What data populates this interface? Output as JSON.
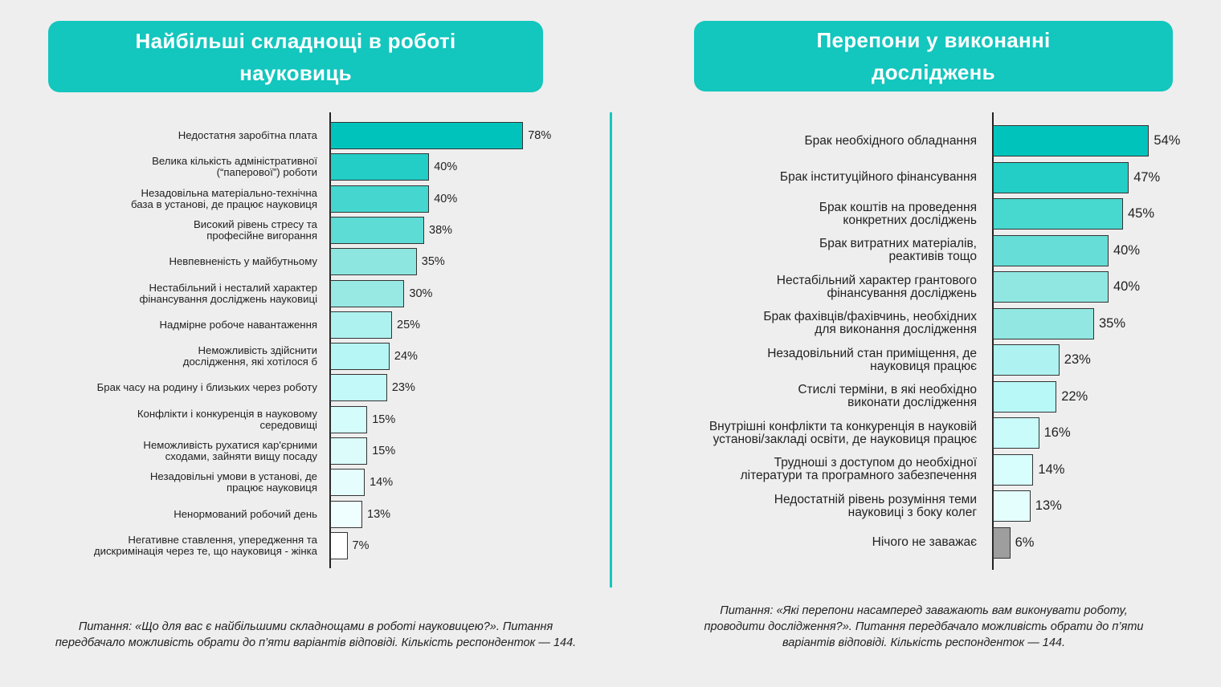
{
  "chart_data": [
    {
      "type": "bar",
      "orientation": "horizontal",
      "title": "Найбільші складнощі в роботі\nнауковиць",
      "categories": [
        "Недостатня заробітна плата",
        "Велика кількість адміністративної\n(“паперової”) роботи",
        "Незадовільна матеріально-технічна\nбаза в установі, де працює науковиця",
        "Високий рівень стресу та\nпрофесійне вигорання",
        "Невпевненість у майбутньому",
        "Нестабільний і несталий характер\nфінансування досліджень науковиці",
        "Надмірне робоче навантаження",
        "Неможливість здійснити\nдослідження, які хотілося б",
        "Брак часу на родину і близьких через роботу",
        "Конфлікти і конкуренція в науковому\nсередовищі",
        "Неможливість рухатися кар'єрними\nсходами, зайняти вищу посаду",
        "Незадовільні умови в установі, де\nпрацює науковиця",
        "Ненормований робочий день",
        "Негативне ставлення, упередження та\nдискримінація через те, що науковиця - жінка"
      ],
      "values": [
        78,
        40,
        40,
        38,
        35,
        30,
        25,
        24,
        23,
        15,
        15,
        14,
        13,
        7
      ],
      "value_labels": [
        "78%",
        "40%",
        "40%",
        "38%",
        "35%",
        "30%",
        "25%",
        "24%",
        "23%",
        "15%",
        "15%",
        "14%",
        "13%",
        "7%"
      ],
      "colors": [
        "#00c4bc",
        "#22cec6",
        "#45d7cf",
        "#5cdcd5",
        "#8ee6e1",
        "#98e8e3",
        "#aef2ef",
        "#b6f6f5",
        "#c3f9f8",
        "#d4fcfb",
        "#dbfcfb",
        "#e6fdfd",
        "#effefe",
        "#ffffff"
      ],
      "xlim": [
        0,
        100
      ],
      "note": "Питання: «Що для вас є найбільшими складнощами в роботі науковицею?». Питання\nпередбачало можливість обрати до п’яти варіантів відповіді. Кількість респонденток — 144."
    },
    {
      "type": "bar",
      "orientation": "horizontal",
      "title": "Перепони у виконанні\nдосліджень",
      "categories": [
        "Брак необхідного обладнання",
        "Брак інституційного фінансування",
        "Брак коштів на проведення\nконкретних досліджень",
        "Брак витратних матеріалів,\nреактивів тощо",
        "Нестабільний характер грантового\nфінансування досліджень",
        "Брак фахівців/фахівчинь, необхідних\nдля виконання дослідження",
        "Незадовільний стан приміщення, де\nнауковиця працює",
        "Стислі терміни, в які необхідно\nвиконати дослідження",
        "Внутрішні конфлікти та конкуренція в науковій\nустанові/закладі освіти, де науковиця працює",
        "Трудноші з доступом до необхідної\nлітератури та програмного забезпечення",
        "Недостатній рівень розуміння теми\nнауковиці з боку колег",
        "Нічого не заважає"
      ],
      "values": [
        54,
        47,
        45,
        40,
        40,
        35,
        23,
        22,
        16,
        14,
        13,
        6
      ],
      "value_labels": [
        "54%",
        "47%",
        "45%",
        "40%",
        "40%",
        "35%",
        "23%",
        "22%",
        "16%",
        "14%",
        "13%",
        "6%"
      ],
      "colors": [
        "#00c4bc",
        "#22cec6",
        "#47d8d0",
        "#66ddd6",
        "#90e7e2",
        "#92e7e2",
        "#aef3f1",
        "#b8f8f7",
        "#c9fbfa",
        "#d7fdfc",
        "#e4fefe",
        "#9e9e9e"
      ],
      "xlim": [
        0,
        60
      ],
      "note": "Питання: «Які перепони насамперед заважають вам виконувати роботу,\nпроводити дослідження?». Питання передбачало можливість обрати до п’яти\nваріантів відповіді. Кількість респонденток — 144."
    }
  ]
}
